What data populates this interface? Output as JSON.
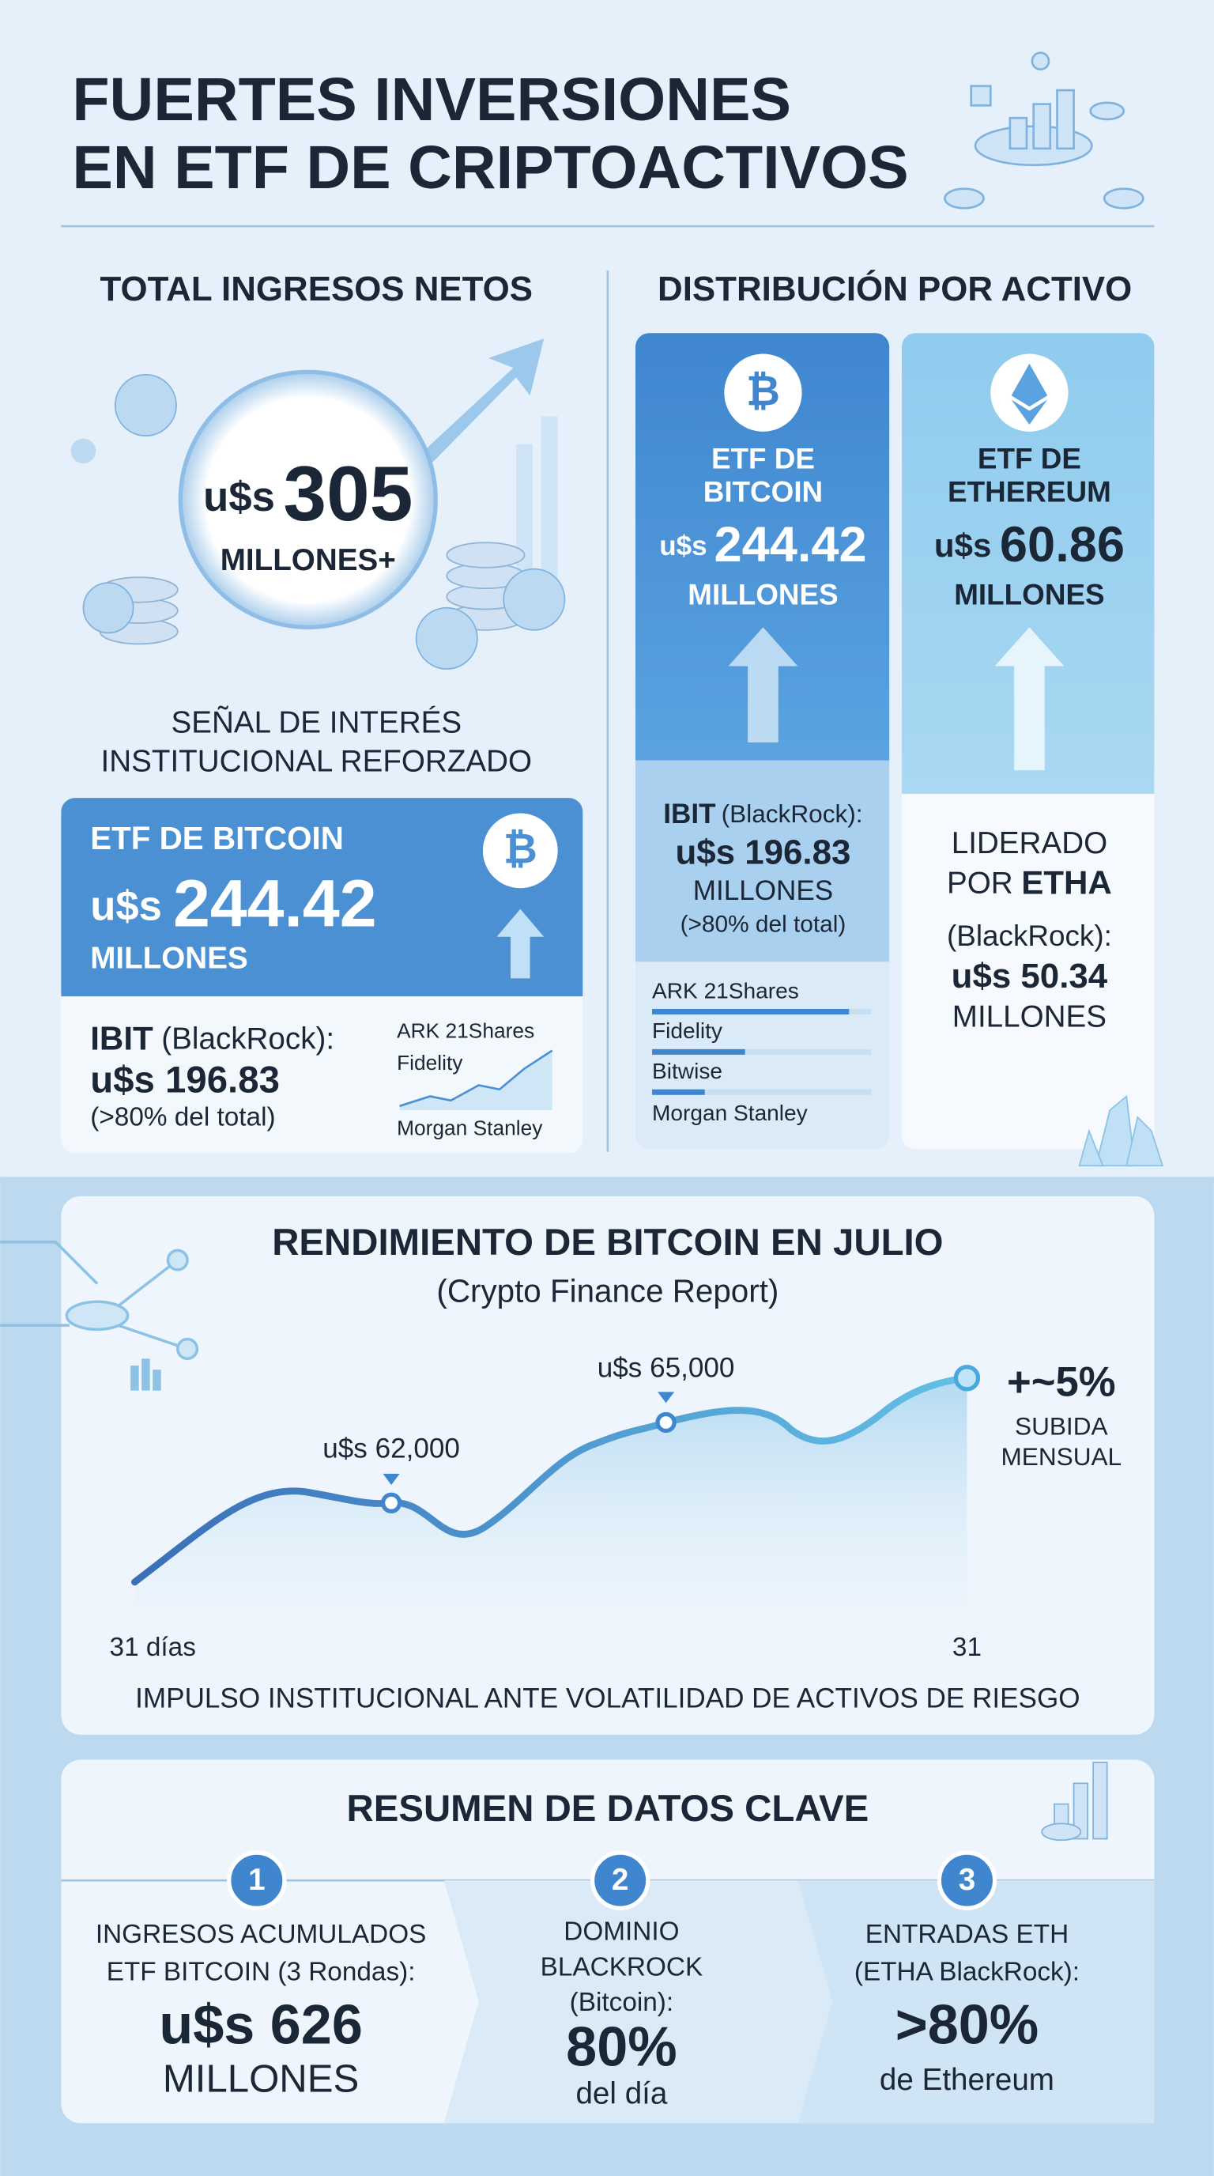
{
  "header": {
    "title_line1": "FUERTES INVERSIONES",
    "title_line2": "EN ETF DE CRIPTOACTIVOS"
  },
  "total": {
    "heading": "TOTAL INGRESOS NETOS",
    "currency": "u$s",
    "amount": "305",
    "unit": "MILLONES+",
    "caption_line1": "SEÑAL DE INTERÉS",
    "caption_line2": "INSTITUCIONAL REFORZADO"
  },
  "bitcoin_card": {
    "title": "ETF DE BITCOIN",
    "currency": "u$s",
    "amount": "244.42",
    "unit": "MILLONES",
    "leader": "IBIT",
    "leader_org": "(BlackRock):",
    "leader_amount": "u$s 196.83",
    "leader_share": "(>80% del total)",
    "others": [
      "ARK 21Shares",
      "Fidelity",
      "Morgan Stanley"
    ]
  },
  "distribution": {
    "heading": "DISTRIBUCIÓN POR ACTIVO",
    "bitcoin": {
      "title_line1": "ETF DE",
      "title_line2": "BITCOIN",
      "currency": "u$s",
      "amount": "244.42",
      "unit": "MILLONES",
      "leader": "IBIT",
      "leader_org": "(BlackRock):",
      "leader_amount": "u$s 196.83",
      "leader_unit": "MILLONES",
      "leader_share": "(>80% del total)",
      "issuers": [
        "ARK 21Shares",
        "Fidelity",
        "Bitwise",
        "Morgan Stanley"
      ]
    },
    "ethereum": {
      "title_line1": "ETF DE",
      "title_line2": "ETHEREUM",
      "currency": "u$s",
      "amount": "60.86",
      "unit": "MILLONES",
      "led_line1": "LIDERADO",
      "led_by": "POR",
      "leader": "ETHA",
      "leader_org": "(BlackRock):",
      "leader_amount": "u$s 50.34",
      "leader_unit": "MILLONES"
    }
  },
  "performance": {
    "title": "RENDIMIENTO DE BITCOIN EN JULIO",
    "subtitle": "(Crypto Finance Report)",
    "point_labels": [
      "u$s 62,000",
      "u$s 65,000"
    ],
    "change": "+~5%",
    "change_line1": "SUBIDA",
    "change_line2": "MENSUAL",
    "x_start": "31 días",
    "x_end": "31",
    "footer": "IMPULSO INSTITUCIONAL ANTE VOLATILIDAD DE ACTIVOS DE RIESGO"
  },
  "summary": {
    "title": "RESUMEN DE DATOS CLAVE",
    "items": [
      {
        "number": "1",
        "lines": [
          "INGRESOS ACUMULADOS",
          "ETF BITCOIN (3 Rondas):"
        ],
        "value": "u$s 626",
        "note": "MILLONES"
      },
      {
        "number": "2",
        "lines": [
          "DOMINIO",
          "BLACKROCK",
          "(Bitcoin):"
        ],
        "value": "80%",
        "note": "del día"
      },
      {
        "number": "3",
        "lines": [
          "ENTRADAS ETH",
          "(ETHA BlackRock):"
        ],
        "value": ">80%",
        "note": "de Ethereum"
      }
    ]
  }
}
